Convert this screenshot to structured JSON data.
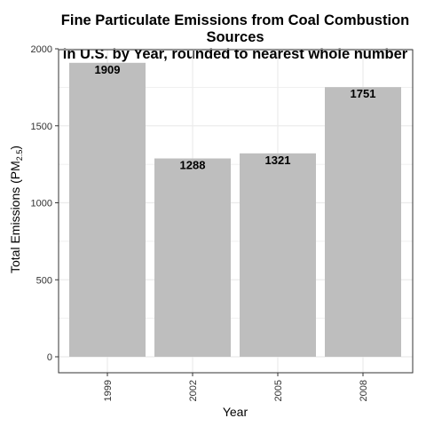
{
  "chart_data": {
    "type": "bar",
    "title_lines": [
      "Fine Particulate Emissions from Coal Combustion Sources",
      "in U.S. by Year, rounded to nearest whole number"
    ],
    "xlabel": "Year",
    "ylabel_prefix": "Total Emissions (PM",
    "ylabel_subscript": "2.5",
    "ylabel_suffix": ")",
    "categories": [
      "1999",
      "2002",
      "2005",
      "2008"
    ],
    "values": [
      1909,
      1288,
      1321,
      1751
    ],
    "data_labels": [
      "1909",
      "1288",
      "1321",
      "1751"
    ],
    "ylim": [
      0,
      2000
    ],
    "yticks": [
      0,
      500,
      1000,
      1500,
      2000
    ],
    "ytick_labels": [
      "0",
      "500",
      "1000",
      "1500",
      "2000"
    ],
    "grid": true,
    "bar_color": "#bebebe",
    "grid_color": "#ebebeb"
  }
}
